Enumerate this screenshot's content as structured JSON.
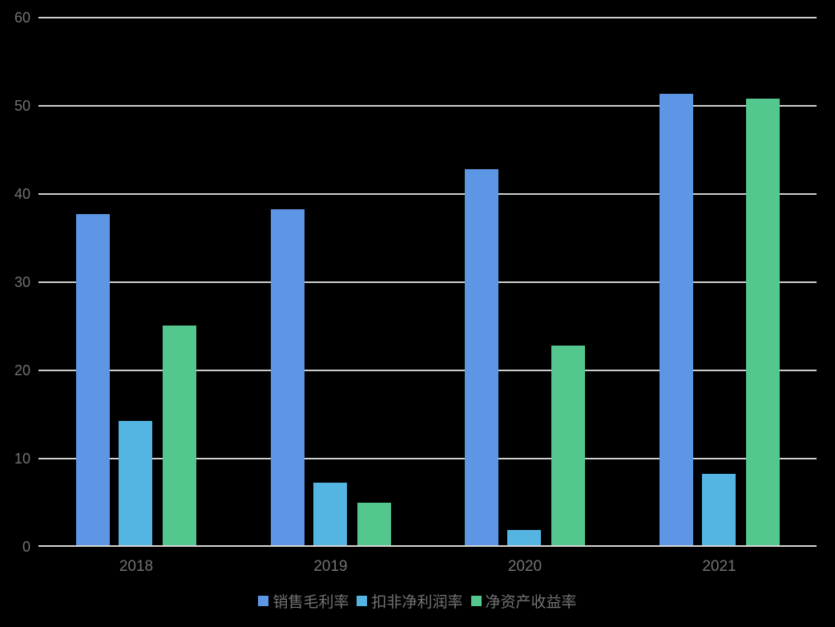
{
  "chart_data": {
    "type": "bar",
    "categories": [
      "2018",
      "2019",
      "2020",
      "2021"
    ],
    "series": [
      {
        "name": "销售毛利率",
        "color": "#5E96E6",
        "values": [
          37.7,
          38.3,
          42.8,
          51.4
        ]
      },
      {
        "name": "扣非净利润率",
        "color": "#54B5E2",
        "values": [
          14.3,
          7.3,
          1.9,
          8.3
        ]
      },
      {
        "name": "净资产收益率",
        "color": "#53C78D",
        "values": [
          25.1,
          5.0,
          22.8,
          50.8
        ]
      }
    ],
    "title": "",
    "xlabel": "",
    "ylabel": "",
    "ylim": [
      0,
      60
    ],
    "yticks": [
      0,
      10,
      20,
      30,
      40,
      50,
      60
    ],
    "grid": "horizontal gridlines on",
    "legend_position": "bottom-center",
    "background_color": "#000000",
    "axis_label_color": "#737373",
    "gridline_color": "#CFCFCF"
  },
  "legend": {
    "items": [
      {
        "label": "销售毛利率",
        "color": "#5E96E6",
        "icon": "square-swatch-icon"
      },
      {
        "label": "扣非净利润率",
        "color": "#54B5E2",
        "icon": "square-swatch-icon"
      },
      {
        "label": "净资产收益率",
        "color": "#53C78D",
        "icon": "square-swatch-icon"
      }
    ]
  }
}
